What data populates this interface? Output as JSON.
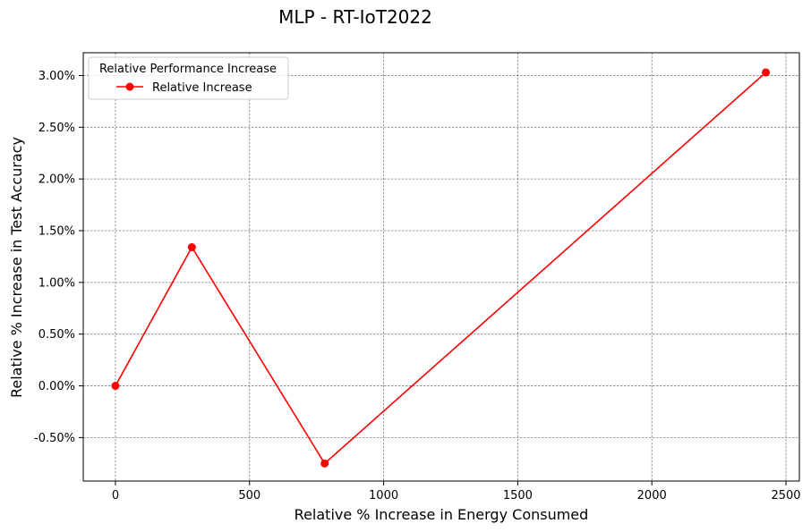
{
  "chart_data": {
    "type": "line",
    "title": "MLP - RT-IoT2022",
    "xlabel": "Relative % Increase in Energy Consumed",
    "ylabel": "Relative % Increase in Test Accuracy",
    "xlim": [
      -120,
      2550
    ],
    "ylim": [
      -0.92,
      3.22
    ],
    "xticks": [
      0,
      500,
      1000,
      1500,
      2000,
      2500
    ],
    "xtick_labels": [
      "0",
      "500",
      "1000",
      "1500",
      "2000",
      "2500"
    ],
    "yticks": [
      -0.5,
      0,
      0.5,
      1.0,
      1.5,
      2.0,
      2.5,
      3.0
    ],
    "ytick_labels": [
      "-0.50%",
      "0.00%",
      "0.50%",
      "1.00%",
      "1.50%",
      "2.00%",
      "2.50%",
      "3.00%"
    ],
    "grid": true,
    "legend": {
      "title": "Relative Performance Increase",
      "placement": "top-left"
    },
    "series": [
      {
        "name": "Relative Increase",
        "color": "#ff0000",
        "marker": "circle",
        "x": [
          0,
          285,
          780,
          2425
        ],
        "y": [
          0.0,
          1.34,
          -0.75,
          3.03
        ]
      }
    ]
  }
}
